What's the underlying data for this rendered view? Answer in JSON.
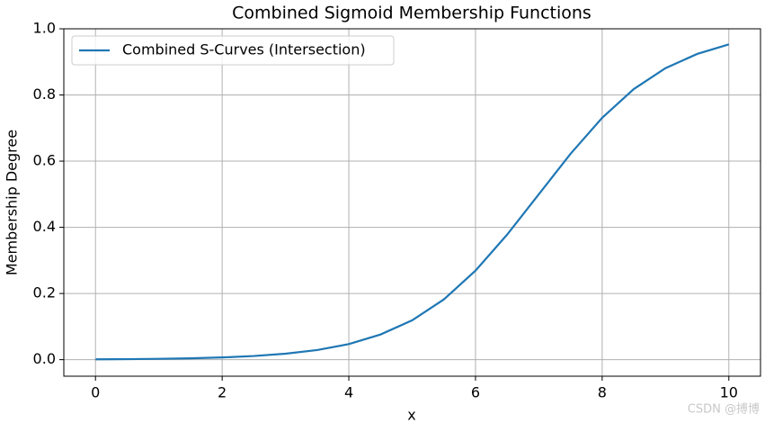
{
  "chart_data": {
    "type": "line",
    "title": "Combined Sigmoid Membership Functions",
    "x_label": "x",
    "y_label": "Membership Degree",
    "x": [
      0,
      0.5,
      1,
      1.5,
      2,
      2.5,
      3,
      3.5,
      4,
      4.5,
      5,
      5.5,
      6,
      6.5,
      7,
      7.5,
      8,
      8.5,
      9,
      9.5,
      10
    ],
    "series": [
      {
        "name": "Combined S-Curves (Intersection)",
        "color": "#1f77b4",
        "values": [
          0.001,
          0.0015,
          0.0025,
          0.0041,
          0.0067,
          0.011,
          0.018,
          0.029,
          0.047,
          0.076,
          0.119,
          0.182,
          0.269,
          0.378,
          0.5,
          0.622,
          0.731,
          0.818,
          0.881,
          0.924,
          0.953
        ]
      }
    ],
    "xlim": [
      -0.5,
      10.5
    ],
    "ylim": [
      -0.05,
      1.0
    ],
    "xticks": [
      0,
      2,
      4,
      6,
      8,
      10
    ],
    "yticks": [
      {
        "value": 0,
        "label": "0.0"
      },
      0.2,
      0.4,
      0.6,
      0.8,
      {
        "value": 1,
        "label": "1.0"
      }
    ],
    "grid": true,
    "legend": "upper left",
    "watermark": "CSDN @搏博"
  }
}
